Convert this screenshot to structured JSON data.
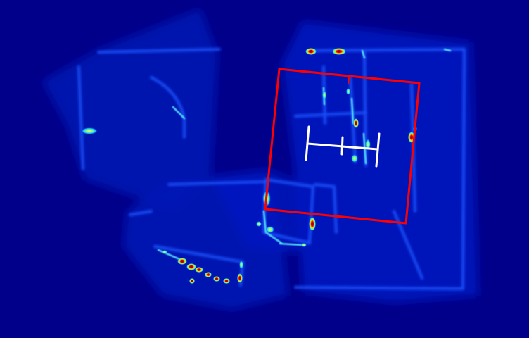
{
  "image": {
    "kind": "heatmap-floorplan",
    "colormap": "jet",
    "colors": {
      "background": "#00008a",
      "low_intensity": "#0a1ed8",
      "mid_intensity": "#1f6bff",
      "high_intensity": "#8df2ff",
      "peak_intensity": "#b10000",
      "selection_box": "#ff0000",
      "marker": "#ffffff"
    }
  }
}
